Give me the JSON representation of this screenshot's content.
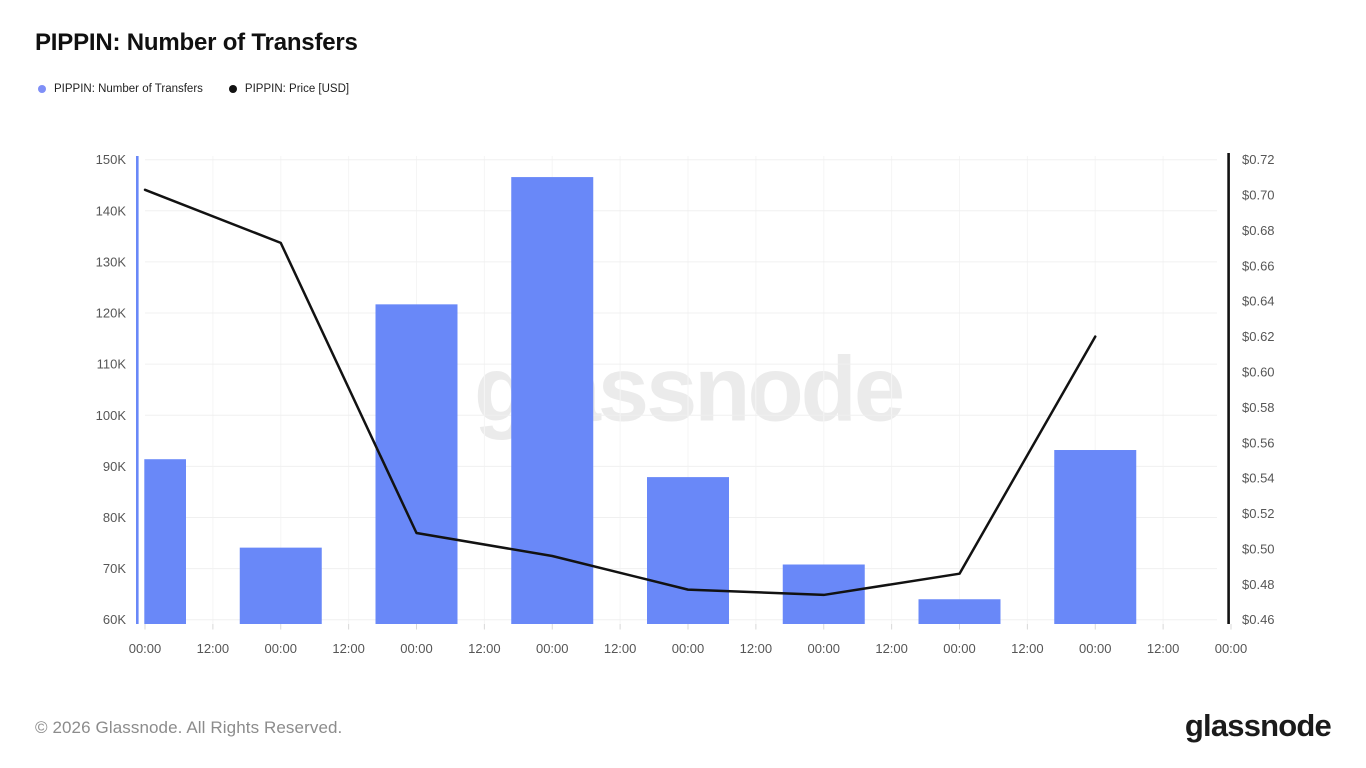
{
  "page": {
    "title": "PIPPIN: Number of Transfers",
    "footer_copyright": "© 2026 Glassnode. All Rights Reserved.",
    "brand_logo_text": "glassnode",
    "watermark_text": "glassnode"
  },
  "legend": {
    "items": [
      {
        "label": "PIPPIN: Number of Transfers",
        "marker_color": "#7f8ff7",
        "series_type": "bar"
      },
      {
        "label": "PIPPIN: Price [USD]",
        "marker_color": "#121212",
        "series_type": "line"
      }
    ]
  },
  "chart_data": {
    "type": "bar",
    "subtype": "dual-axis bar + line time series",
    "title": "PIPPIN: Number of Transfers",
    "x_tick_labels": [
      "00:00",
      "12:00",
      "00:00",
      "12:00",
      "00:00",
      "12:00",
      "00:00",
      "12:00",
      "00:00",
      "12:00",
      "00:00",
      "12:00",
      "00:00",
      "12:00",
      "00:00",
      "12:00",
      "00:00"
    ],
    "x_axis_note": "12-hour ticks spanning 8 days; bars and line points fall on each 00:00",
    "x_range_days": [
      0,
      8
    ],
    "grid": "horizontal and faint vertical gridlines on",
    "legend_position": "top-left above plot",
    "y_left_axis": {
      "title": "PIPPIN: Number of Transfers",
      "tick_labels": [
        "150K",
        "140K",
        "130K",
        "120K",
        "110K",
        "100K",
        "90K",
        "80K",
        "70K",
        "60K"
      ],
      "tick_values": [
        150000,
        140000,
        130000,
        120000,
        110000,
        100000,
        90000,
        80000,
        70000,
        60000
      ],
      "axis_line_color": "#6988f8"
    },
    "y_right_axis": {
      "title": "PIPPIN: Price [USD]",
      "tick_labels": [
        "$0.72",
        "$0.70",
        "$0.68",
        "$0.66",
        "$0.64",
        "$0.62",
        "$0.60",
        "$0.58",
        "$0.56",
        "$0.54",
        "$0.52",
        "$0.50",
        "$0.48",
        "$0.46"
      ],
      "tick_values": [
        0.72,
        0.7,
        0.68,
        0.66,
        0.64,
        0.62,
        0.6,
        0.58,
        0.56,
        0.54,
        0.52,
        0.5,
        0.48,
        0.46
      ],
      "axis_line_color": "#121212"
    },
    "series": [
      {
        "name": "PIPPIN: Number of Transfers",
        "type": "bar",
        "axis": "left",
        "color": "#6988f8",
        "day_index": [
          0,
          1,
          2,
          3,
          4,
          5,
          6,
          7
        ],
        "values": [
          91400,
          74100,
          121700,
          146600,
          87900,
          70800,
          64000,
          93200
        ],
        "note": "first bar is half-clipped by the left plot edge"
      },
      {
        "name": "PIPPIN: Price [USD]",
        "type": "line",
        "axis": "right",
        "color": "#121212",
        "day_index": [
          0,
          1,
          2,
          3,
          4,
          5,
          6,
          7
        ],
        "values": [
          0.703,
          0.673,
          0.509,
          0.496,
          0.477,
          0.474,
          0.486,
          0.62
        ]
      }
    ]
  }
}
